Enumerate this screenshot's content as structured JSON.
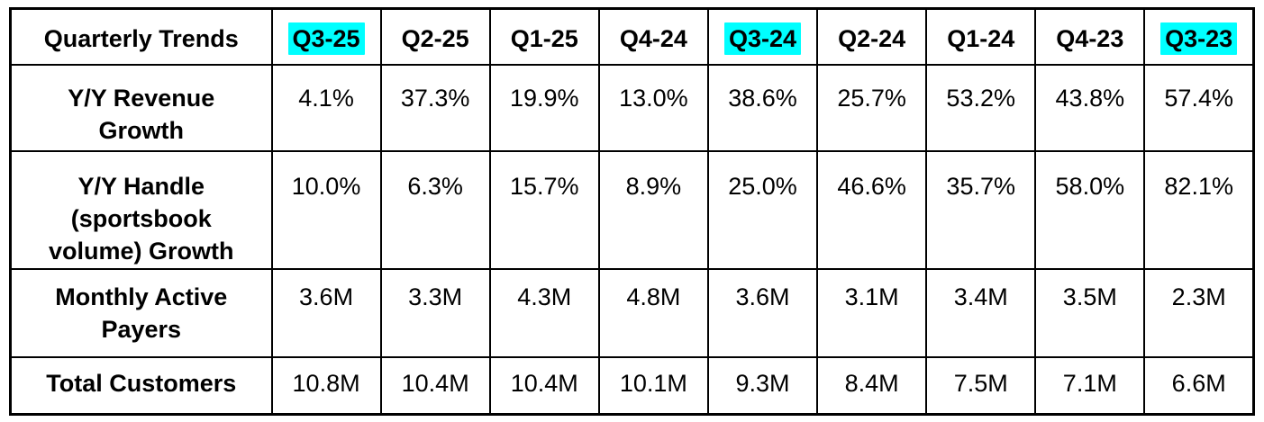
{
  "chart_data": {
    "type": "table",
    "title": "Quarterly Trends",
    "categories": [
      "Q3-25",
      "Q2-25",
      "Q1-25",
      "Q4-24",
      "Q3-24",
      "Q2-24",
      "Q1-24",
      "Q4-23",
      "Q3-23"
    ],
    "highlighted_categories": [
      "Q3-25",
      "Q3-24",
      "Q3-23"
    ],
    "highlight_color": "#00ffff",
    "border_color": "#000000",
    "series": [
      {
        "name": "Y/Y Revenue Growth",
        "values": [
          "4.1%",
          "37.3%",
          "19.9%",
          "13.0%",
          "38.6%",
          "25.7%",
          "53.2%",
          "43.8%",
          "57.4%"
        ]
      },
      {
        "name": "Y/Y Handle (sportsbook volume) Growth",
        "values": [
          "10.0%",
          "6.3%",
          "15.7%",
          "8.9%",
          "25.0%",
          "46.6%",
          "35.7%",
          "58.0%",
          "82.1%"
        ]
      },
      {
        "name": "Monthly Active Payers",
        "values": [
          "3.6M",
          "3.3M",
          "4.3M",
          "4.8M",
          "3.6M",
          "3.1M",
          "3.4M",
          "3.5M",
          "2.3M"
        ]
      },
      {
        "name": "Total Customers",
        "values": [
          "10.8M",
          "10.4M",
          "10.4M",
          "10.1M",
          "9.3M",
          "8.4M",
          "7.5M",
          "7.1M",
          "6.6M"
        ]
      }
    ]
  }
}
